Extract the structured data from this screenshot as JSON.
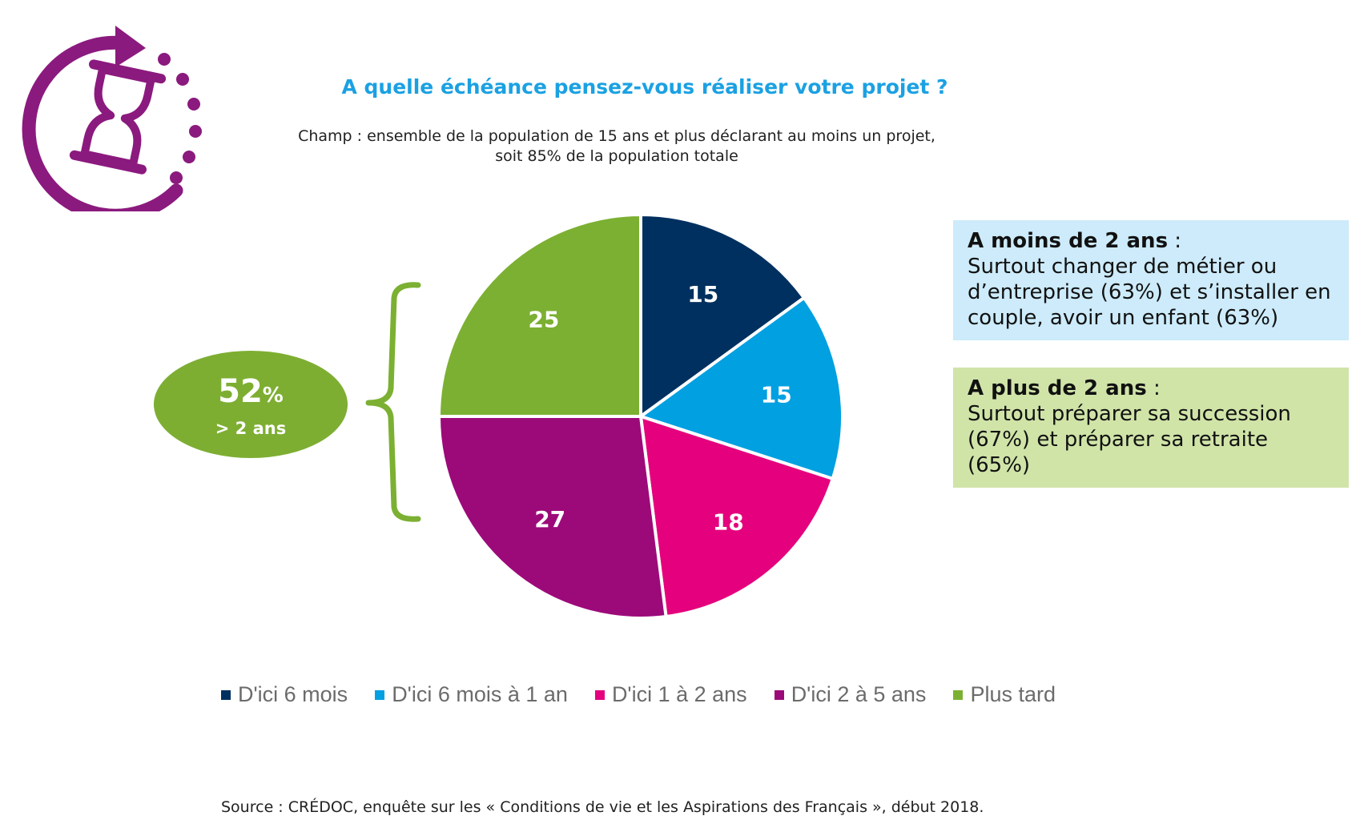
{
  "header": {
    "title": "A quelle échéance pensez-vous réaliser votre projet ?",
    "subtitle": "Champ : ensemble de la population de 15 ans et plus déclarant au moins un projet, soit 85% de la population totale"
  },
  "icon": {
    "name": "hourglass-cycle-icon",
    "color": "#8b1a7e"
  },
  "chart_data": {
    "type": "pie",
    "categories": [
      "D'ici 6 mois",
      "D'ici 6 mois à 1 an",
      "D'ici 1 à 2 ans",
      "D'ici 2 à 5 ans",
      "Plus tard"
    ],
    "values": [
      15,
      15,
      18,
      27,
      25
    ],
    "colors": [
      "#00305f",
      "#00a0e1",
      "#e5007d",
      "#9c0a79",
      "#7cb032"
    ],
    "labels": [
      "15",
      "15",
      "18",
      "27",
      "25"
    ],
    "legend": "bottom"
  },
  "badge": {
    "value": "52",
    "unit": "%",
    "caption": "> 2 ans",
    "color": "#7cb032"
  },
  "boxes": {
    "short": {
      "heading": "A moins de 2 ans",
      "separator": " :",
      "text": "Surtout changer de métier ou d’entreprise (63%) et s’installer en couple, avoir un enfant (63%)"
    },
    "long": {
      "heading": "A plus de 2 ans",
      "separator": " :",
      "text": "Surtout préparer sa succession (67%) et préparer sa retraite (65%)"
    }
  },
  "source": "Source : CRÉDOC, enquête sur les « Conditions de vie et les Aspirations des Français », début 2018."
}
